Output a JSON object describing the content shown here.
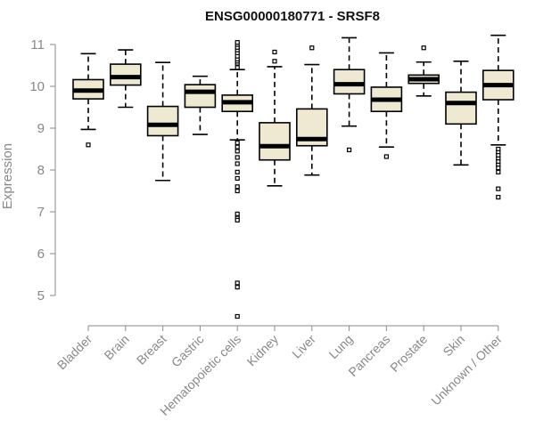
{
  "chart_data": {
    "type": "boxplot",
    "title": "ENSG00000180771 - SRSF8",
    "ylabel": "Expression",
    "xlabel": "",
    "ylim": [
      4.4,
      11.3
    ],
    "yticks": [
      5,
      6,
      7,
      8,
      9,
      10,
      11
    ],
    "grid": false,
    "colors": {
      "box_fill": "#efe9d2",
      "stroke": "#000000",
      "axis": "#888888"
    },
    "categories": [
      "Bladder",
      "Brain",
      "Breast",
      "Gastric",
      "Hematopoietic cells",
      "Kidney",
      "Liver",
      "Lung",
      "Pancreas",
      "Prostate",
      "Skin",
      "Unknown / Other"
    ],
    "boxes": [
      {
        "category": "Bladder",
        "whisker_low": 8.97,
        "q1": 9.7,
        "median": 9.9,
        "q3": 10.16,
        "whisker_high": 10.78,
        "outliers": [
          8.6
        ]
      },
      {
        "category": "Brain",
        "whisker_low": 9.5,
        "q1": 10.03,
        "median": 10.22,
        "q3": 10.53,
        "whisker_high": 10.87,
        "outliers": []
      },
      {
        "category": "Breast",
        "whisker_low": 7.75,
        "q1": 8.82,
        "median": 9.08,
        "q3": 9.52,
        "whisker_high": 10.57,
        "outliers": []
      },
      {
        "category": "Gastric",
        "whisker_low": 8.85,
        "q1": 9.5,
        "median": 9.87,
        "q3": 10.04,
        "whisker_high": 10.24,
        "outliers": []
      },
      {
        "category": "Hematopoietic cells",
        "whisker_low": 8.72,
        "q1": 9.4,
        "median": 9.62,
        "q3": 9.79,
        "whisker_high": 10.4,
        "outliers": [
          10.45,
          10.55,
          10.6,
          10.65,
          10.72,
          10.8,
          10.87,
          10.93,
          11.0,
          11.05,
          8.65,
          8.55,
          8.45,
          8.3,
          8.15,
          7.95,
          7.8,
          7.6,
          7.5,
          6.95,
          6.85,
          6.8,
          5.3,
          5.2,
          4.5
        ]
      },
      {
        "category": "Kidney",
        "whisker_low": 7.62,
        "q1": 8.24,
        "median": 8.57,
        "q3": 9.13,
        "whisker_high": 10.47,
        "outliers": [
          10.6,
          10.82
        ]
      },
      {
        "category": "Liver",
        "whisker_low": 7.88,
        "q1": 8.58,
        "median": 8.74,
        "q3": 9.46,
        "whisker_high": 10.52,
        "outliers": [
          10.92
        ]
      },
      {
        "category": "Lung",
        "whisker_low": 9.05,
        "q1": 9.82,
        "median": 10.05,
        "q3": 10.4,
        "whisker_high": 11.16,
        "outliers": [
          8.48
        ]
      },
      {
        "category": "Pancreas",
        "whisker_low": 8.55,
        "q1": 9.4,
        "median": 9.68,
        "q3": 9.98,
        "whisker_high": 10.8,
        "outliers": [
          8.32
        ]
      },
      {
        "category": "Prostate",
        "whisker_low": 9.77,
        "q1": 10.07,
        "median": 10.17,
        "q3": 10.27,
        "whisker_high": 10.58,
        "outliers": [
          10.92
        ]
      },
      {
        "category": "Skin",
        "whisker_low": 8.12,
        "q1": 9.1,
        "median": 9.6,
        "q3": 9.86,
        "whisker_high": 10.6,
        "outliers": []
      },
      {
        "category": "Unknown / Other",
        "whisker_low": 8.6,
        "q1": 9.68,
        "median": 10.03,
        "q3": 10.38,
        "whisker_high": 11.22,
        "outliers": [
          8.5,
          8.42,
          8.35,
          8.27,
          8.2,
          8.12,
          8.05,
          7.95,
          7.55,
          7.35
        ]
      }
    ]
  }
}
